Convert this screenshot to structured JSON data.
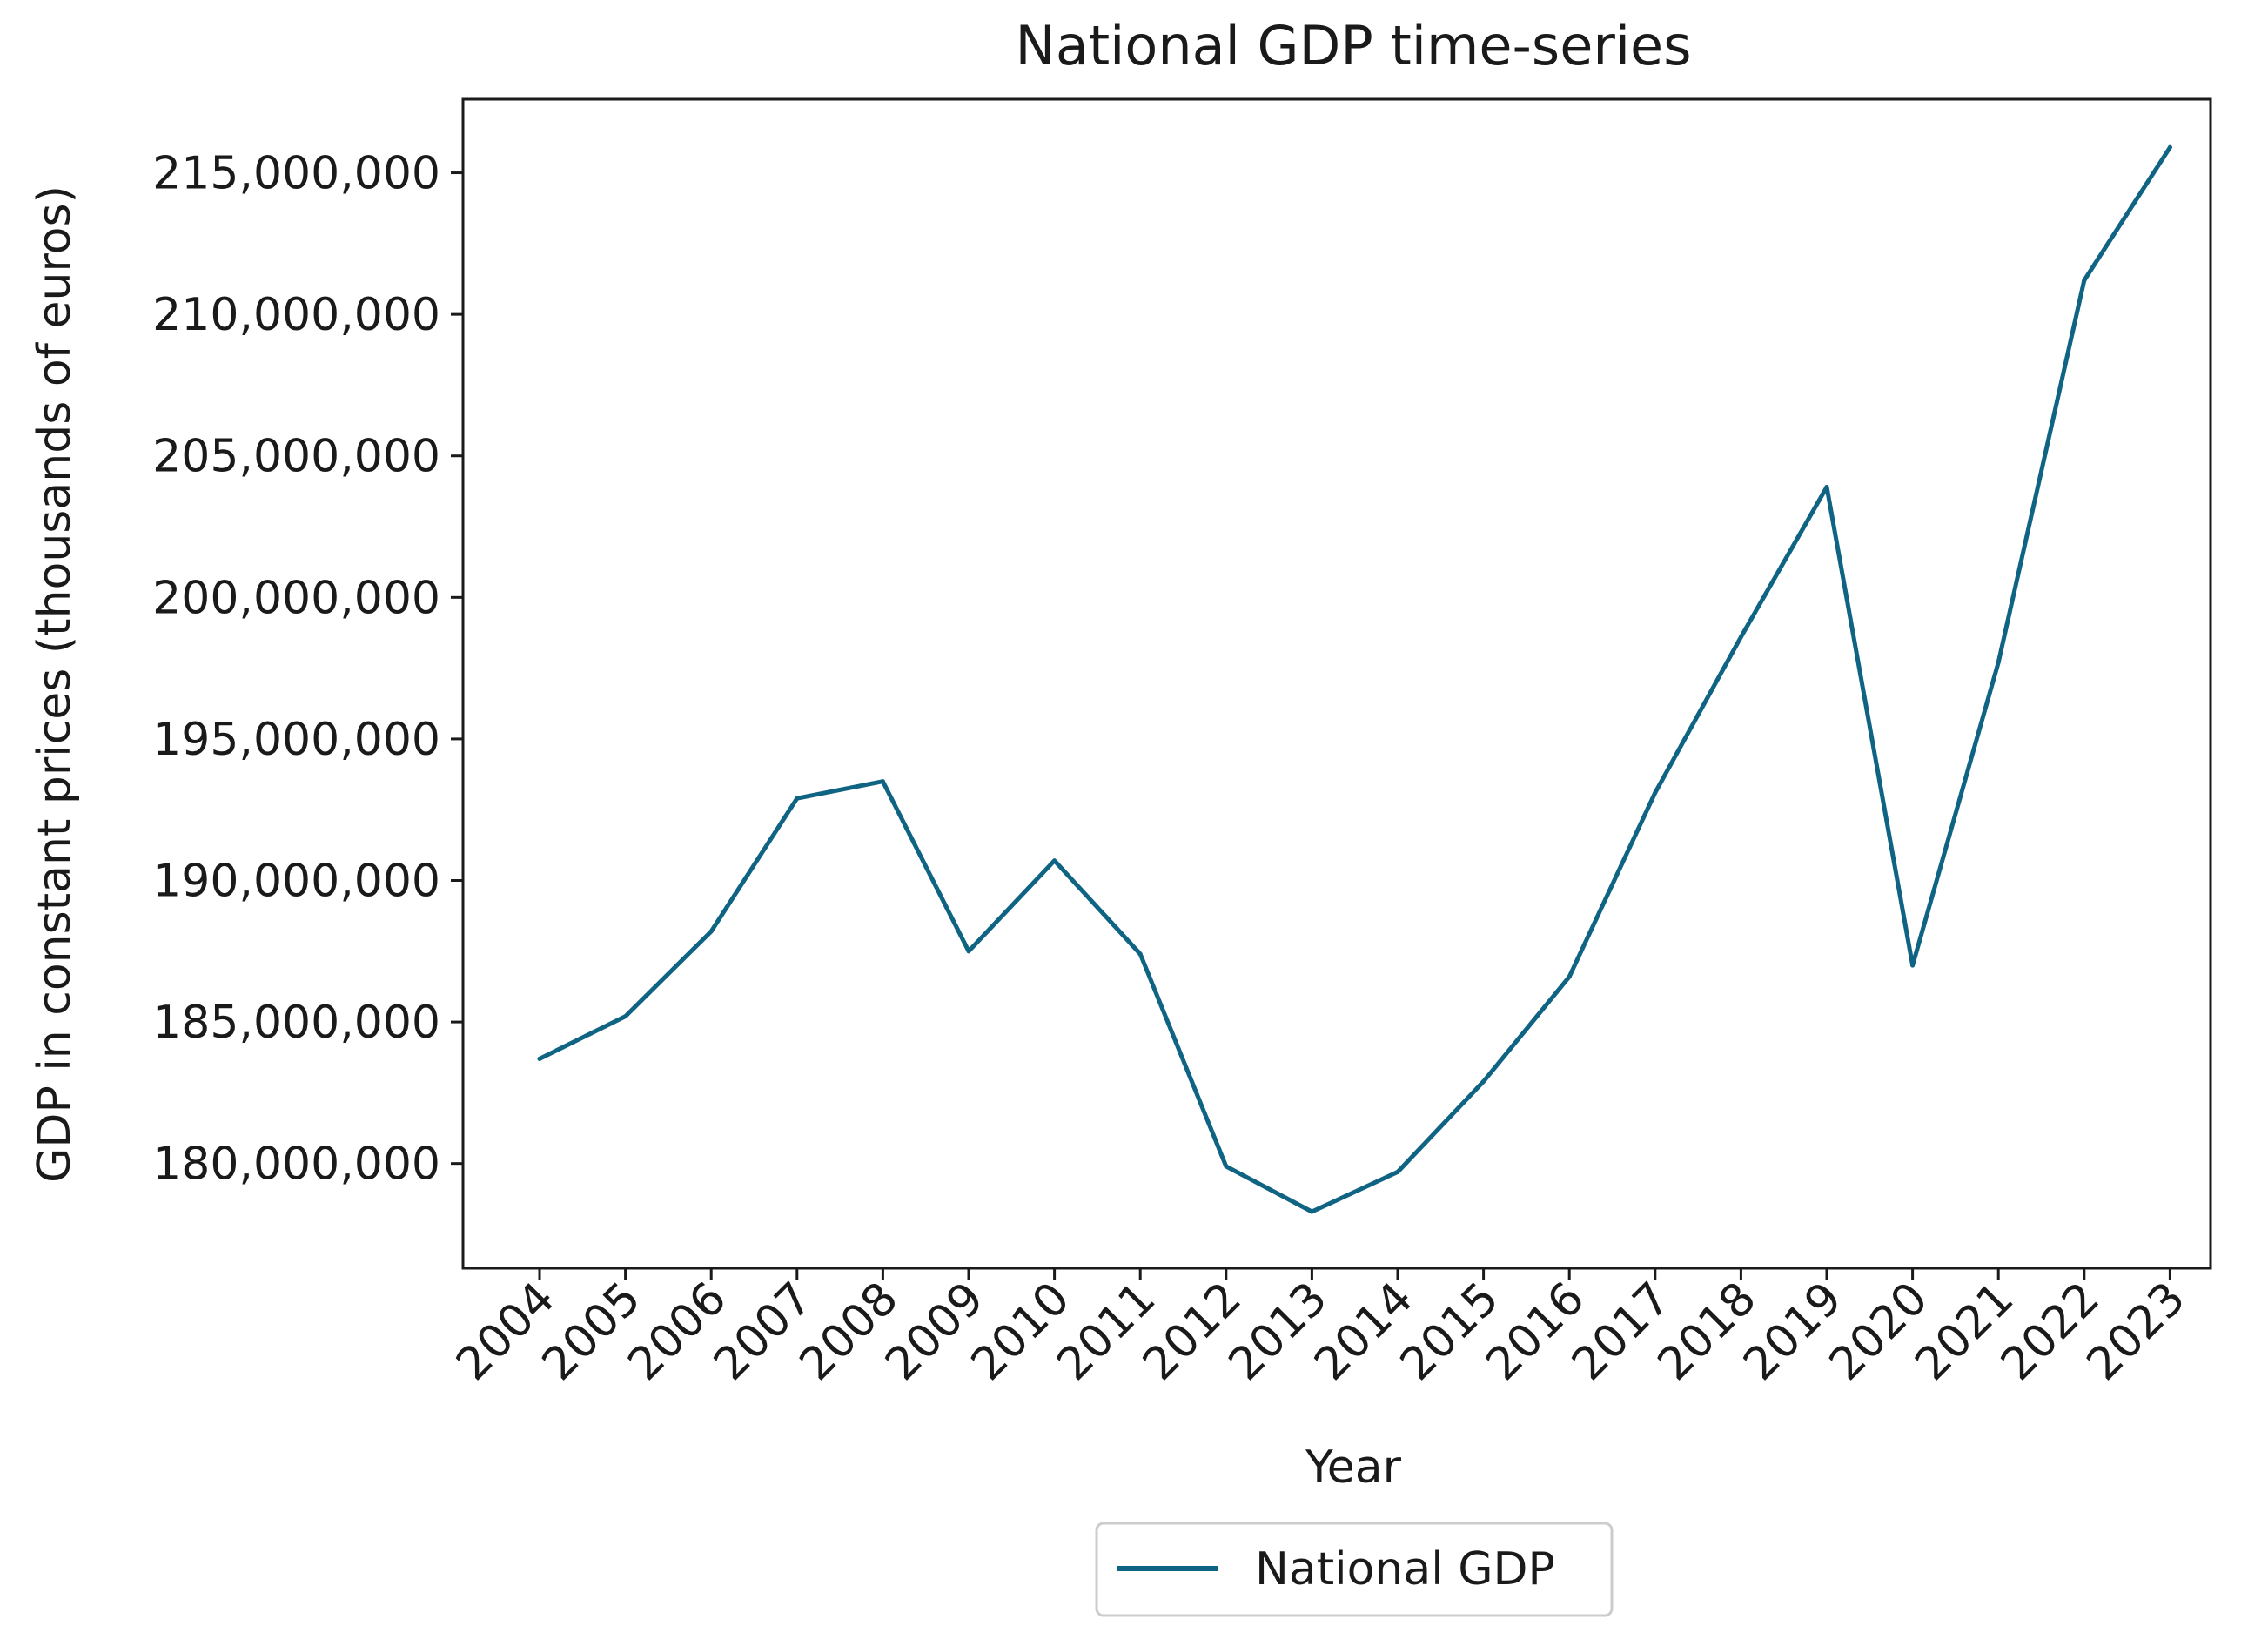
{
  "chart_data": {
    "type": "line",
    "title": "National GDP time-series",
    "xlabel": "Year",
    "ylabel": "GDP in constant prices (thousands of euros)",
    "categories": [
      "2004",
      "2005",
      "2006",
      "2007",
      "2008",
      "2009",
      "2010",
      "2011",
      "2012",
      "2013",
      "2014",
      "2015",
      "2016",
      "2017",
      "2018",
      "2019",
      "2020",
      "2021",
      "2022",
      "2023"
    ],
    "series": [
      {
        "name": "National GDP",
        "color": "#0f6383",
        "values": [
          183700000,
          185200000,
          188200000,
          192900000,
          193500000,
          187500000,
          190700000,
          187400000,
          179900000,
          178300000,
          179700000,
          182900000,
          186600000,
          193100000,
          198600000,
          203900000,
          187000000,
          197700000,
          211200000,
          215900000
        ]
      }
    ],
    "ylim": [
      176300000,
      217600000
    ],
    "yticks": [
      180000000,
      185000000,
      190000000,
      195000000,
      200000000,
      205000000,
      210000000,
      215000000
    ],
    "ytick_labels": [
      "180,000,000",
      "185,000,000",
      "190,000,000",
      "195,000,000",
      "200,000,000",
      "205,000,000",
      "210,000,000",
      "215,000,000"
    ],
    "grid": false,
    "legend_position": "bottom-center"
  }
}
